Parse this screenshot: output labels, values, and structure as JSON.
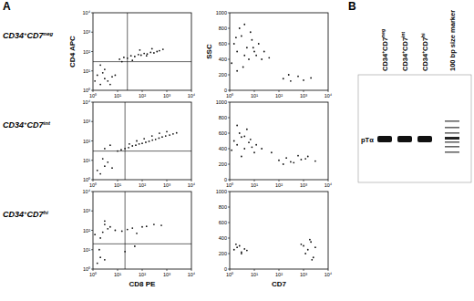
{
  "figure": {
    "panel_labels": [
      "A",
      "B"
    ],
    "rows": [
      {
        "segments": [
          "CD34",
          "+",
          "CD7",
          "neg"
        ]
      },
      {
        "segments": [
          "CD34",
          "+",
          "CD7",
          "int"
        ]
      },
      {
        "segments": [
          "CD34",
          "+",
          "CD7",
          "hi"
        ]
      }
    ]
  },
  "chart_data": [
    {
      "type": "scatter",
      "log": true,
      "xlim": [
        1,
        10000
      ],
      "ylim": [
        1,
        10000
      ],
      "xticks": [
        {
          "value": 1,
          "label": "10⁰"
        },
        {
          "value": 10,
          "label": "10¹"
        },
        {
          "value": 100,
          "label": "10²"
        },
        {
          "value": 1000,
          "label": "10³"
        },
        {
          "value": 10000,
          "label": "10⁴"
        }
      ],
      "yticks": [
        {
          "value": 1,
          "label": "10⁰"
        },
        {
          "value": 10,
          "label": "10¹"
        },
        {
          "value": 100,
          "label": "10²"
        },
        {
          "value": 1000,
          "label": "10³"
        },
        {
          "value": 10000,
          "label": "10⁴"
        }
      ],
      "gates": {
        "x": 25,
        "y": 30
      },
      "y_label": "CD4 APC",
      "x": [
        2,
        3,
        1.5,
        4,
        2.5,
        5,
        3,
        6,
        1.2,
        2,
        8,
        12,
        18,
        25,
        35,
        50,
        70,
        90,
        120,
        160,
        220,
        300,
        400,
        15,
        40,
        80,
        150,
        250,
        500,
        700
      ],
      "values": [
        2,
        4,
        6,
        3,
        8,
        2,
        12,
        5,
        3,
        20,
        6,
        40,
        50,
        45,
        60,
        55,
        70,
        65,
        80,
        75,
        90,
        85,
        100,
        30,
        35,
        120,
        60,
        140,
        110,
        130
      ]
    },
    {
      "type": "scatter",
      "log": true,
      "xlim": [
        1,
        10000
      ],
      "ylim": [
        1,
        10000
      ],
      "xticks": [
        {
          "value": 1,
          "label": "10⁰"
        },
        {
          "value": 10,
          "label": "10¹"
        },
        {
          "value": 100,
          "label": "10²"
        },
        {
          "value": 1000,
          "label": "10³"
        },
        {
          "value": 10000,
          "label": "10⁴"
        }
      ],
      "yticks": [
        {
          "value": 1,
          "label": "10⁰"
        },
        {
          "value": 10,
          "label": "10¹"
        },
        {
          "value": 100,
          "label": "10²"
        },
        {
          "value": 1000,
          "label": "10³"
        },
        {
          "value": 10000,
          "label": "10⁴"
        }
      ],
      "gates": {
        "x": 20,
        "y": 30
      },
      "x": [
        2,
        3,
        1.5,
        4,
        2.5,
        6,
        10,
        14,
        20,
        28,
        40,
        55,
        75,
        100,
        140,
        190,
        260,
        350,
        480,
        650,
        900,
        1300,
        1800,
        2500,
        30,
        60,
        120,
        250,
        500,
        1000,
        3,
        5
      ],
      "values": [
        2,
        5,
        3,
        8,
        12,
        4,
        30,
        35,
        40,
        45,
        55,
        60,
        70,
        75,
        85,
        95,
        110,
        120,
        140,
        160,
        180,
        200,
        230,
        260,
        70,
        100,
        130,
        180,
        250,
        300,
        40,
        60
      ]
    },
    {
      "type": "scatter",
      "log": true,
      "xlim": [
        1,
        10000
      ],
      "ylim": [
        1,
        10000
      ],
      "xticks": [
        {
          "value": 1,
          "label": "10⁰"
        },
        {
          "value": 10,
          "label": "10¹"
        },
        {
          "value": 100,
          "label": "10²"
        },
        {
          "value": 1000,
          "label": "10³"
        },
        {
          "value": 10000,
          "label": "10⁴"
        }
      ],
      "yticks": [
        {
          "value": 1,
          "label": "10⁰"
        },
        {
          "value": 10,
          "label": "10¹"
        },
        {
          "value": 100,
          "label": "10²"
        },
        {
          "value": 1000,
          "label": "10³"
        },
        {
          "value": 10000,
          "label": "10⁴"
        }
      ],
      "gates": {
        "x": 20,
        "y": 20
      },
      "x_label": "CD8 PE",
      "x": [
        1.5,
        2,
        3,
        2.5,
        4,
        1.2,
        3,
        5,
        2,
        8,
        15,
        25,
        40,
        60,
        100,
        150,
        300,
        600,
        20,
        50,
        3,
        1.8
      ],
      "values": [
        2,
        4,
        3,
        80,
        120,
        60,
        200,
        150,
        40,
        100,
        90,
        110,
        130,
        70,
        150,
        160,
        200,
        180,
        8,
        15,
        300,
        10
      ]
    },
    {
      "type": "scatter",
      "log": "x",
      "xlim": [
        1,
        10000
      ],
      "ylim": [
        0,
        1000
      ],
      "xticks": [
        {
          "value": 1,
          "label": "10⁰"
        },
        {
          "value": 10,
          "label": "10¹"
        },
        {
          "value": 100,
          "label": "10²"
        },
        {
          "value": 1000,
          "label": "10³"
        },
        {
          "value": 10000,
          "label": "10⁴"
        }
      ],
      "yticks": [
        0,
        200,
        400,
        600,
        800,
        1000
      ],
      "y_label": "SSC",
      "x": [
        1.5,
        2,
        3,
        4,
        5,
        2.5,
        6,
        8,
        10,
        1.2,
        3.5,
        7,
        12,
        15,
        20,
        2,
        4,
        9,
        25,
        1.8,
        150,
        300,
        600,
        1000,
        2000,
        250,
        40
      ],
      "values": [
        600,
        500,
        700,
        450,
        550,
        800,
        400,
        650,
        500,
        350,
        300,
        750,
        450,
        600,
        400,
        250,
        850,
        550,
        500,
        680,
        150,
        120,
        180,
        130,
        160,
        200,
        420
      ]
    },
    {
      "type": "scatter",
      "log": "x",
      "xlim": [
        1,
        10000
      ],
      "ylim": [
        0,
        1000
      ],
      "xticks": [
        {
          "value": 1,
          "label": "10⁰"
        },
        {
          "value": 10,
          "label": "10¹"
        },
        {
          "value": 100,
          "label": "10²"
        },
        {
          "value": 1000,
          "label": "10³"
        },
        {
          "value": 10000,
          "label": "10⁴"
        }
      ],
      "yticks": [
        0,
        200,
        400,
        600,
        800,
        1000
      ],
      "x": [
        1.5,
        2,
        3,
        4,
        6,
        2.5,
        8,
        10,
        1.2,
        5,
        3,
        7,
        12,
        2,
        4,
        100,
        200,
        400,
        800,
        1500,
        3000,
        150,
        600,
        1200,
        300,
        50,
        20
      ],
      "values": [
        500,
        450,
        550,
        400,
        480,
        600,
        420,
        350,
        380,
        650,
        300,
        520,
        450,
        700,
        560,
        250,
        280,
        220,
        260,
        300,
        240,
        200,
        310,
        270,
        230,
        350,
        400
      ]
    },
    {
      "type": "scatter",
      "log": "x",
      "xlim": [
        1,
        10000
      ],
      "ylim": [
        0,
        1000
      ],
      "xticks": [
        {
          "value": 1,
          "label": "10⁰"
        },
        {
          "value": 10,
          "label": "10¹"
        },
        {
          "value": 100,
          "label": "10²"
        },
        {
          "value": 1000,
          "label": "10³"
        },
        {
          "value": 10000,
          "label": "10⁴"
        }
      ],
      "yticks": [
        0,
        200,
        400,
        600,
        800,
        1000
      ],
      "x_label": "CD7",
      "x": [
        1.5,
        2,
        3,
        2.5,
        4,
        1.8,
        5,
        3,
        1000,
        1500,
        2000,
        2500,
        3000,
        1200,
        1800,
        800,
        2200
      ],
      "values": [
        250,
        280,
        220,
        300,
        260,
        320,
        240,
        200,
        300,
        250,
        350,
        150,
        280,
        200,
        380,
        320,
        120
      ]
    }
  ],
  "gel": {
    "lanes": [
      {
        "segments": [
          "CD34",
          "+",
          "CD7",
          "neg"
        ]
      },
      {
        "segments": [
          "CD34",
          "+",
          "CD7",
          "int"
        ]
      },
      {
        "segments": [
          "CD34",
          "+",
          "CD7",
          "hi"
        ]
      },
      {
        "segments": [
          "100 bp size marker"
        ]
      }
    ],
    "band_label": "pTα"
  }
}
